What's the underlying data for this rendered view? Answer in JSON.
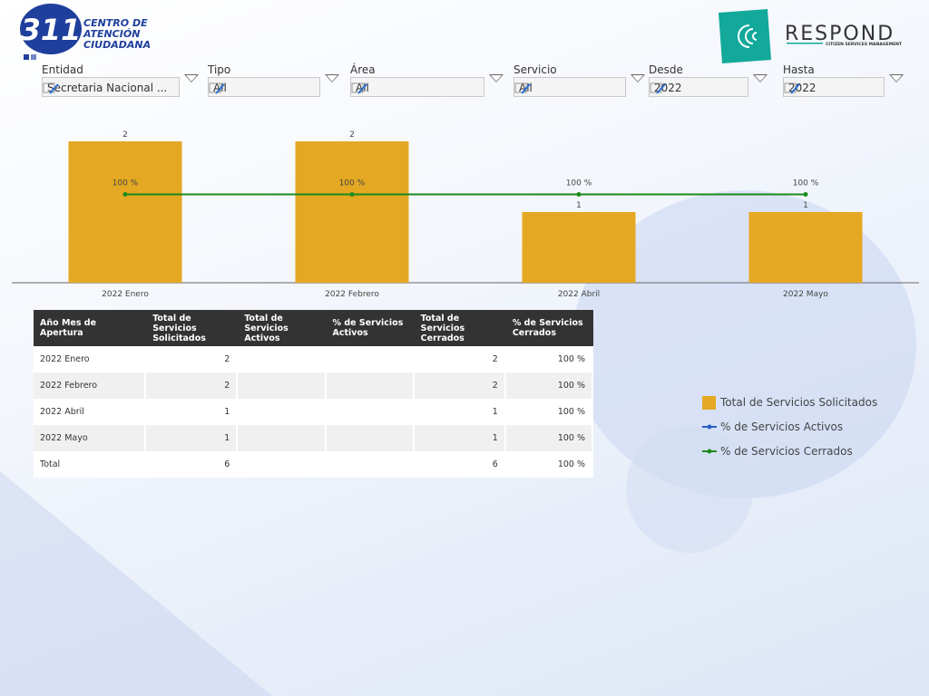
{
  "header": {
    "brand_number": "311",
    "brand_lines": [
      "CENTRO DE",
      "ATENCIÓN",
      "CIUDADANA"
    ],
    "partner": "RESPOND",
    "partner_tagline": "CITIZEN SERVICES MANAGEMENT"
  },
  "filters": [
    {
      "label": "Entidad",
      "value": "Secretaria Nacional ..."
    },
    {
      "label": "Tipo",
      "value": "All"
    },
    {
      "label": "Área",
      "value": "All"
    },
    {
      "label": "Servicio",
      "value": "All"
    },
    {
      "label": "Desde",
      "value": "2022"
    },
    {
      "label": "Hasta",
      "value": "2022"
    }
  ],
  "chart_data": {
    "type": "bar-line",
    "categories": [
      "2022 Enero",
      "2022 Febrero",
      "2022 Abril",
      "2022 Mayo"
    ],
    "ylim": [
      0,
      2
    ],
    "y2lim": [
      0,
      160
    ],
    "series": [
      {
        "name": "Total de Servicios Solicitados",
        "type": "bar",
        "color": "#e5a823",
        "values": [
          2,
          2,
          1,
          1
        ]
      },
      {
        "name": "% de Servicios Activos",
        "type": "line",
        "axis": "y2",
        "color": "#2a5fc4",
        "values": [
          null,
          null,
          null,
          null
        ]
      },
      {
        "name": "% de Servicios Cerrados",
        "type": "line",
        "axis": "y2",
        "color": "#1b8a1b",
        "values": [
          100,
          100,
          100,
          100
        ],
        "value_labels": [
          "100 %",
          "100 %",
          "100 %",
          "100 %"
        ]
      }
    ]
  },
  "table": {
    "columns": [
      "Año Mes de Apertura",
      "Total de Servicios Solicitados",
      "Total de Servicios Activos",
      "% de Servicios Activos",
      "Total de Servicios Cerrados",
      "% de Servicios Cerrados"
    ],
    "rows": [
      [
        "2022 Enero",
        2,
        null,
        null,
        2,
        "100 %"
      ],
      [
        "2022 Febrero",
        2,
        null,
        null,
        2,
        "100 %"
      ],
      [
        "2022 Abril",
        1,
        null,
        null,
        1,
        "100 %"
      ],
      [
        "2022 Mayo",
        1,
        null,
        null,
        1,
        "100 %"
      ],
      [
        "Total",
        6,
        null,
        null,
        6,
        "100 %"
      ]
    ]
  }
}
